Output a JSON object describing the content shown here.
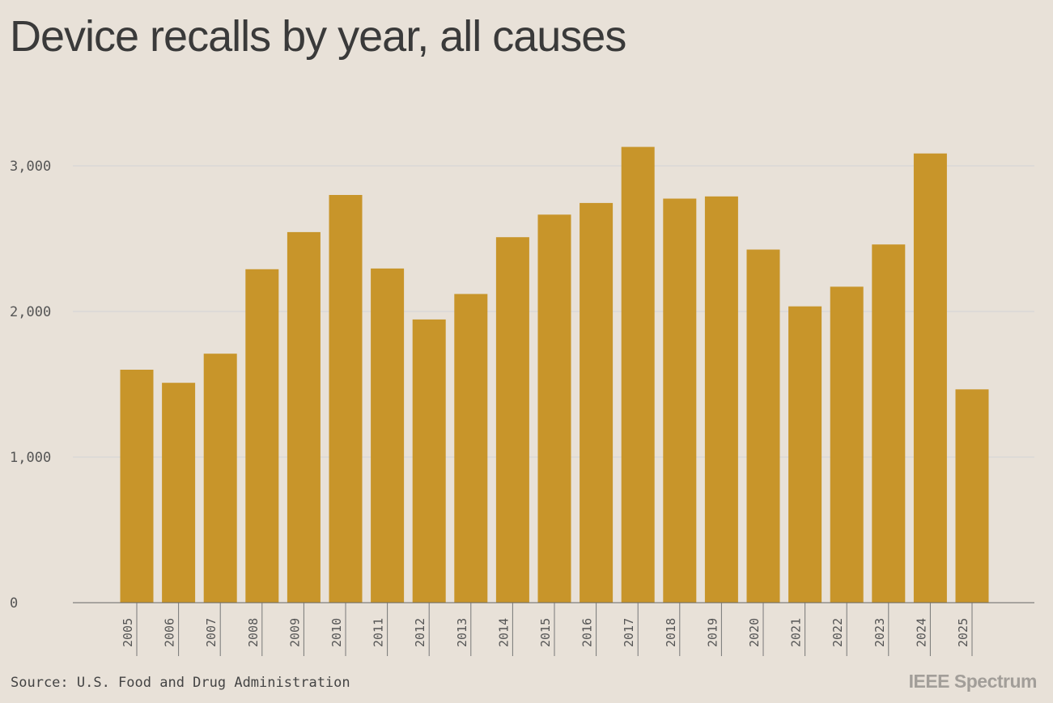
{
  "chart_data": {
    "type": "bar",
    "title": "Device recalls by year, all causes",
    "xlabel": "",
    "ylabel": "",
    "categories": [
      "2005",
      "2006",
      "2007",
      "2008",
      "2009",
      "2010",
      "2011",
      "2012",
      "2013",
      "2014",
      "2015",
      "2016",
      "2017",
      "2018",
      "2019",
      "2020",
      "2021",
      "2022",
      "2023",
      "2024",
      "2025"
    ],
    "values": [
      1600,
      1510,
      1710,
      2290,
      2545,
      2800,
      2295,
      1945,
      2120,
      2510,
      2665,
      2745,
      3130,
      2775,
      2790,
      2425,
      2035,
      2170,
      2460,
      3085,
      1465
    ],
    "ylim": [
      0,
      3300
    ],
    "yticks": [
      0,
      1000,
      2000,
      3000
    ],
    "ytick_labels": [
      "0",
      "1,000",
      "2,000",
      "3,000"
    ],
    "grid": true,
    "bar_color": "#c8952a",
    "source": "Source: U.S. Food and Drug Administration"
  },
  "branding": {
    "logo_text": "IEEE Spectrum"
  },
  "colors": {
    "background": "#e8e1d8",
    "bar": "#c8952a",
    "grid": "#d6d6d6",
    "axis": "#666666"
  }
}
